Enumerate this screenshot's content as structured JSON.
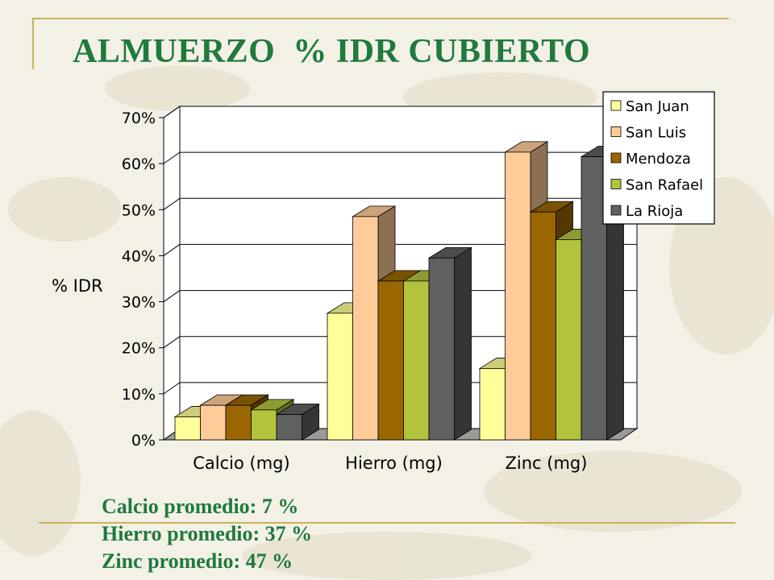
{
  "slide": {
    "title": "ALMUERZO  % IDR CUBIERTO",
    "summary": [
      "Calcio promedio: 7 %",
      "Hierro promedio: 37 %",
      "Zinc promedio: 47 %"
    ]
  },
  "colors": {
    "title_text": "#1f7a3c",
    "frame_line": "#c9b25a"
  },
  "chart_data": {
    "type": "bar",
    "style": "3d-clustered-column",
    "categories": [
      "Calcio (mg)",
      "Hierro (mg)",
      "Zinc (mg)"
    ],
    "ylabel": "% IDR",
    "xlabel": "",
    "ylim": [
      0,
      70
    ],
    "yticks": [
      0,
      10,
      20,
      30,
      40,
      50,
      60,
      70
    ],
    "ytick_labels": [
      "0%",
      "10%",
      "20%",
      "30%",
      "40%",
      "50%",
      "60%",
      "70%"
    ],
    "grid": true,
    "legend_position": "top-right",
    "series": [
      {
        "name": "San Juan",
        "color": "#ffff99",
        "values": [
          5,
          27.5,
          15.5
        ]
      },
      {
        "name": "San Luis",
        "color": "#ffcc99",
        "values": [
          7.5,
          48.5,
          62.5
        ]
      },
      {
        "name": "Mendoza",
        "color": "#996600",
        "values": [
          7.5,
          34.5,
          49.5
        ]
      },
      {
        "name": "San Rafael",
        "color": "#b3c33c",
        "values": [
          6.5,
          34.5,
          43.5
        ]
      },
      {
        "name": "La Rioja",
        "color": "#606060",
        "values": [
          5.5,
          39.5,
          61.5
        ]
      }
    ]
  }
}
